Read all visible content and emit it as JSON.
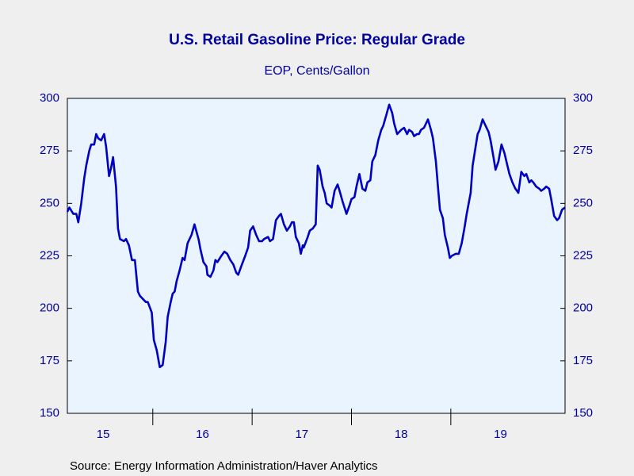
{
  "chart_data": {
    "type": "line",
    "title": "U.S. Retail Gasoline Price: Regular Grade",
    "subtitle": "EOP, Cents/Gallon",
    "source": "Source:  Energy Information Administration/Haver Analytics",
    "color": "#0000c0",
    "x": [
      2015.14,
      2015.16,
      2015.2,
      2015.23,
      2015.25,
      2015.28,
      2015.31,
      2015.33,
      2015.36,
      2015.38,
      2015.41,
      2015.43,
      2015.45,
      2015.48,
      2015.51,
      2015.53,
      2015.56,
      2015.58,
      2015.6,
      2015.63,
      2015.65,
      2015.67,
      2015.71,
      2015.73,
      2015.76,
      2015.79,
      2015.82,
      2015.85,
      2015.87,
      2015.91,
      2015.93,
      2015.95,
      2015.99,
      2016.01,
      2016.04,
      2016.07,
      2016.1,
      2016.13,
      2016.15,
      2016.18,
      2016.2,
      2016.22,
      2016.24,
      2016.27,
      2016.3,
      2016.32,
      2016.35,
      2016.39,
      2016.42,
      2016.46,
      2016.48,
      2016.51,
      2016.54,
      2016.55,
      2016.58,
      2016.61,
      2016.63,
      2016.65,
      2016.69,
      2016.72,
      2016.75,
      2016.78,
      2016.81,
      2016.84,
      2016.86,
      2016.89,
      2016.93,
      2016.96,
      2016.98,
      2017.01,
      2017.04,
      2017.07,
      2017.1,
      2017.12,
      2017.16,
      2017.18,
      2017.21,
      2017.24,
      2017.27,
      2017.29,
      2017.32,
      2017.35,
      2017.38,
      2017.4,
      2017.42,
      2017.44,
      2017.47,
      2017.49,
      2017.51,
      2017.52,
      2017.56,
      2017.58,
      2017.61,
      2017.64,
      2017.66,
      2017.68,
      2017.71,
      2017.73,
      2017.75,
      2017.78,
      2017.8,
      2017.83,
      2017.86,
      2017.88,
      2017.91,
      2017.93,
      2017.95,
      2017.98,
      2018.0,
      2018.03,
      2018.05,
      2018.08,
      2018.11,
      2018.14,
      2018.16,
      2018.19,
      2018.21,
      2018.24,
      2018.27,
      2018.3,
      2018.32,
      2018.35,
      2018.38,
      2018.41,
      2018.43,
      2018.46,
      2018.5,
      2018.53,
      2018.56,
      2018.58,
      2018.61,
      2018.63,
      2018.66,
      2018.68,
      2018.7,
      2018.73,
      2018.77,
      2018.8,
      2018.82,
      2018.85,
      2018.87,
      2018.89,
      2018.92,
      2018.94,
      2018.97,
      2018.99,
      2019.01,
      2019.05,
      2019.08,
      2019.11,
      2019.14,
      2019.16,
      2019.2,
      2019.22,
      2019.24,
      2019.27,
      2019.29,
      2019.32,
      2019.35,
      2019.38,
      2019.4,
      2019.43,
      2019.45,
      2019.48,
      2019.51,
      2019.54,
      2019.56,
      2019.59,
      2019.62,
      2019.65,
      2019.68,
      2019.71,
      2019.74,
      2019.76,
      2019.79,
      2019.81,
      2019.83,
      2019.86,
      2019.89,
      2019.91,
      2019.94,
      2019.96,
      2019.99,
      2020.01,
      2020.04,
      2020.07,
      2020.09,
      2020.12,
      2020.15
    ],
    "values": [
      246,
      248,
      245,
      245,
      241,
      250,
      262,
      268,
      275,
      278,
      278,
      283,
      281,
      280,
      283,
      277,
      263,
      267,
      272,
      258,
      238,
      233,
      232,
      233,
      230,
      223,
      223,
      208,
      206,
      204,
      203,
      203,
      198,
      185,
      180,
      172,
      173,
      184,
      196,
      203,
      207,
      208,
      213,
      218,
      224,
      223,
      231,
      235,
      240,
      233,
      228,
      222,
      220,
      216,
      215,
      218,
      223,
      222,
      225,
      227,
      226,
      223,
      221,
      217,
      216,
      220,
      225,
      229,
      237,
      239,
      235,
      232,
      232,
      233,
      234,
      232,
      233,
      242,
      244,
      245,
      240,
      237,
      239,
      241,
      241,
      234,
      231,
      226,
      230,
      229,
      234,
      237,
      238,
      240,
      268,
      266,
      258,
      255,
      250,
      249,
      248,
      256,
      259,
      256,
      251,
      248,
      245,
      249,
      252,
      253,
      258,
      264,
      257,
      256,
      260,
      261,
      270,
      273,
      280,
      285,
      287,
      292,
      297,
      293,
      288,
      283,
      285,
      286,
      283,
      285,
      284,
      282,
      283,
      283,
      285,
      286,
      290,
      285,
      281,
      270,
      258,
      247,
      243,
      235,
      229,
      224,
      225,
      226,
      226,
      231,
      239,
      245,
      255,
      268,
      274,
      283,
      285,
      290,
      287,
      284,
      280,
      272,
      266,
      270,
      278,
      274,
      270,
      264,
      260,
      257,
      255,
      265,
      263,
      264,
      260,
      261,
      260,
      258,
      257,
      256,
      257,
      258,
      257,
      252,
      244,
      242,
      243,
      247,
      248
    ],
    "xlim": [
      2015.14,
      2020.15
    ],
    "xticks": [
      {
        "value": 2015.5,
        "label": "15"
      },
      {
        "value": 2016.5,
        "label": "16"
      },
      {
        "value": 2017.5,
        "label": "17"
      },
      {
        "value": 2018.5,
        "label": "18"
      },
      {
        "value": 2019.5,
        "label": "19"
      }
    ],
    "year_boundaries": [
      2016,
      2017,
      2018,
      2019
    ],
    "ylim": [
      150,
      300
    ],
    "yticks": [
      150,
      175,
      200,
      225,
      250,
      275,
      300
    ],
    "y2lim": [
      150,
      300
    ],
    "y2ticks": [
      150,
      175,
      200,
      225,
      250,
      275,
      300
    ]
  }
}
